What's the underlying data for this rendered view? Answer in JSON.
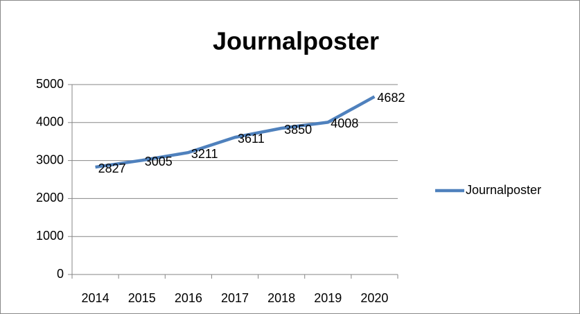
{
  "chart_data": {
    "type": "line",
    "title": "Journalposter",
    "categories": [
      "2014",
      "2015",
      "2016",
      "2017",
      "2018",
      "2019",
      "2020"
    ],
    "series": [
      {
        "name": "Journalposter",
        "color": "#4f81bd",
        "values": [
          2827,
          3005,
          3211,
          3611,
          3850,
          4008,
          4682
        ]
      }
    ],
    "ylim": [
      0,
      5000
    ],
    "yticks": [
      0,
      1000,
      2000,
      3000,
      4000,
      5000
    ],
    "grid": true,
    "legend": "right"
  }
}
